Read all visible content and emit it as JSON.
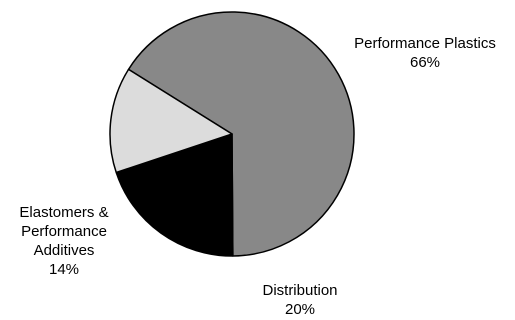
{
  "chart_data": {
    "type": "pie",
    "title": "",
    "slices": [
      {
        "label": "Performance Plastics",
        "value": 66,
        "value_label": "66%",
        "color": "#888888"
      },
      {
        "label": "Distribution",
        "value": 20,
        "value_label": "20%",
        "color": "#000000"
      },
      {
        "label": "Elastomers & Performance Additives",
        "value": 14,
        "value_label": "14%",
        "color": "#dcdcdc"
      }
    ],
    "outline_color": "#000000",
    "legend": "none"
  }
}
